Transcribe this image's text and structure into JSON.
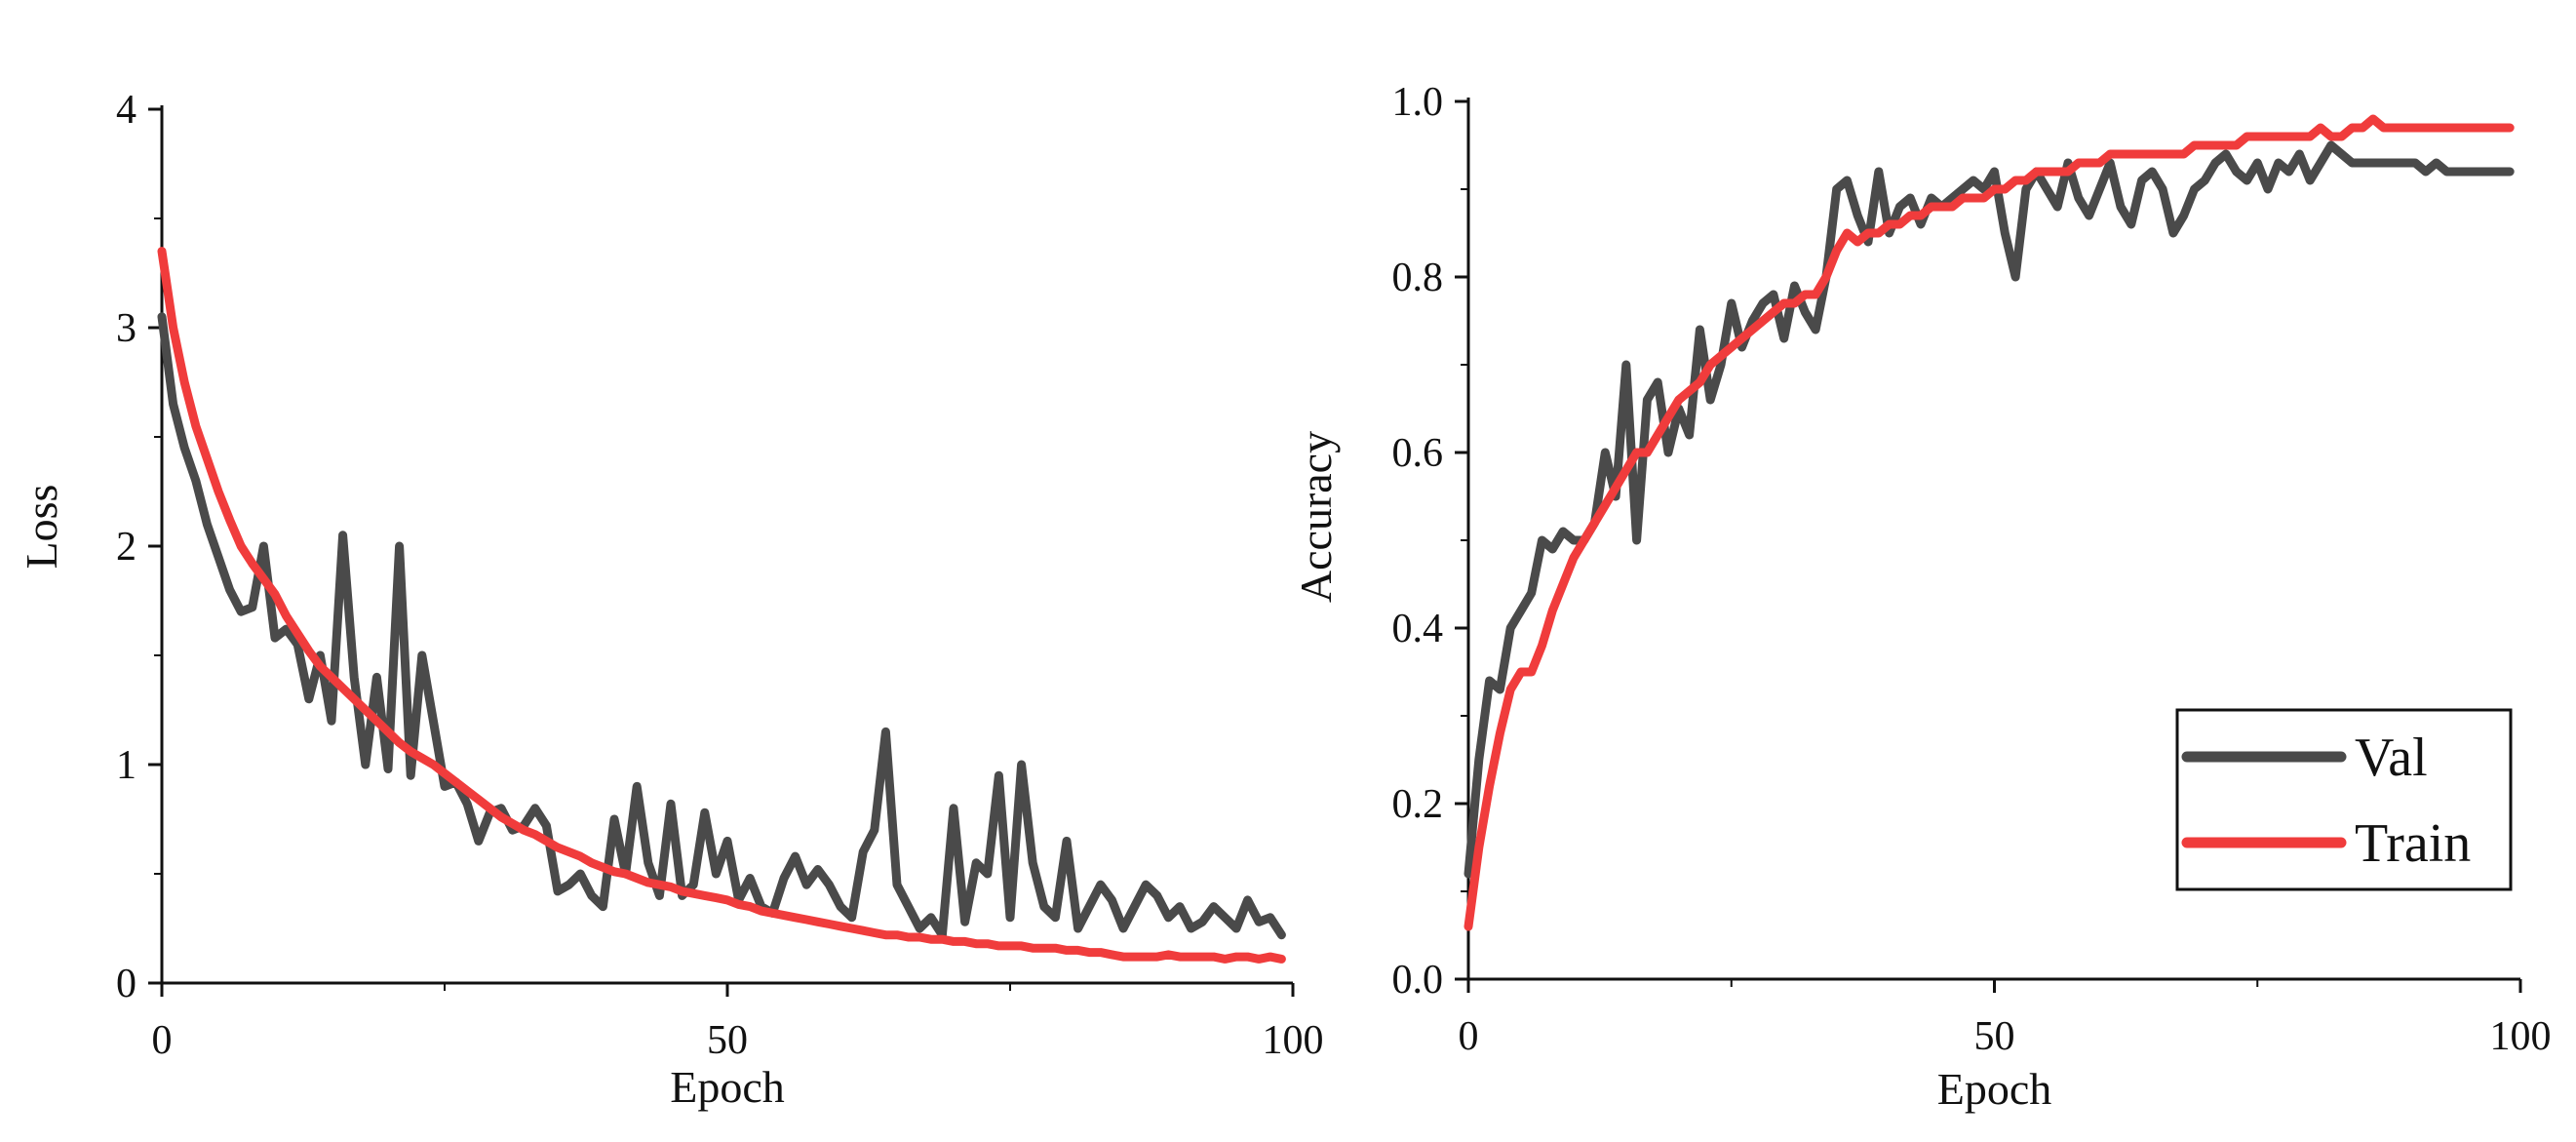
{
  "colors": {
    "val": "#4a4a4a",
    "train": "#f03c3c",
    "axis": "#111111"
  },
  "chart_data": [
    {
      "type": "line",
      "xlabel": "Epoch",
      "ylabel": "Loss",
      "xlim": [
        0,
        100
      ],
      "ylim": [
        0,
        4
      ],
      "xticks": [
        "0",
        "50",
        "100"
      ],
      "yticks": [
        "0",
        "1",
        "2",
        "3",
        "4"
      ],
      "grid": false,
      "series": [
        {
          "name": "Val",
          "x": [
            0,
            1,
            2,
            3,
            4,
            5,
            6,
            7,
            8,
            9,
            10,
            11,
            12,
            13,
            14,
            15,
            16,
            17,
            18,
            19,
            20,
            21,
            22,
            23,
            24,
            25,
            26,
            27,
            28,
            29,
            30,
            31,
            32,
            33,
            34,
            35,
            36,
            37,
            38,
            39,
            40,
            41,
            42,
            43,
            44,
            45,
            46,
            47,
            48,
            49,
            50,
            51,
            52,
            53,
            54,
            55,
            56,
            57,
            58,
            59,
            60,
            61,
            62,
            63,
            64,
            65,
            66,
            67,
            68,
            69,
            70,
            71,
            72,
            73,
            74,
            75,
            76,
            77,
            78,
            79,
            80,
            81,
            82,
            83,
            84,
            85,
            86,
            87,
            88,
            89,
            90,
            91,
            92,
            93,
            94,
            95,
            96,
            97,
            98,
            99
          ],
          "values": [
            3.05,
            2.65,
            2.45,
            2.3,
            2.1,
            1.95,
            1.8,
            1.7,
            1.72,
            2.0,
            1.58,
            1.62,
            1.55,
            1.3,
            1.5,
            1.2,
            2.05,
            1.4,
            1.0,
            1.4,
            0.98,
            2.0,
            0.95,
            1.5,
            1.2,
            0.9,
            0.92,
            0.82,
            0.65,
            0.78,
            0.8,
            0.7,
            0.72,
            0.8,
            0.72,
            0.42,
            0.45,
            0.5,
            0.4,
            0.35,
            0.75,
            0.5,
            0.9,
            0.55,
            0.4,
            0.82,
            0.4,
            0.45,
            0.78,
            0.5,
            0.65,
            0.38,
            0.48,
            0.35,
            0.32,
            0.48,
            0.58,
            0.45,
            0.52,
            0.45,
            0.35,
            0.3,
            0.6,
            0.7,
            1.15,
            0.45,
            0.35,
            0.25,
            0.3,
            0.22,
            0.8,
            0.28,
            0.55,
            0.5,
            0.95,
            0.3,
            1.0,
            0.55,
            0.35,
            0.3,
            0.65,
            0.25,
            0.35,
            0.45,
            0.38,
            0.25,
            0.35,
            0.45,
            0.4,
            0.3,
            0.35,
            0.25,
            0.28,
            0.35,
            0.3,
            0.25,
            0.38,
            0.28,
            0.3,
            0.22
          ]
        },
        {
          "name": "Train",
          "x": [
            0,
            1,
            2,
            3,
            4,
            5,
            6,
            7,
            8,
            9,
            10,
            11,
            12,
            13,
            14,
            15,
            16,
            17,
            18,
            19,
            20,
            21,
            22,
            23,
            24,
            25,
            26,
            27,
            28,
            29,
            30,
            31,
            32,
            33,
            34,
            35,
            36,
            37,
            38,
            39,
            40,
            41,
            42,
            43,
            44,
            45,
            46,
            47,
            48,
            49,
            50,
            51,
            52,
            53,
            54,
            55,
            56,
            57,
            58,
            59,
            60,
            61,
            62,
            63,
            64,
            65,
            66,
            67,
            68,
            69,
            70,
            71,
            72,
            73,
            74,
            75,
            76,
            77,
            78,
            79,
            80,
            81,
            82,
            83,
            84,
            85,
            86,
            87,
            88,
            89,
            90,
            91,
            92,
            93,
            94,
            95,
            96,
            97,
            98,
            99
          ],
          "values": [
            3.35,
            3.0,
            2.75,
            2.55,
            2.4,
            2.25,
            2.12,
            2.0,
            1.92,
            1.85,
            1.78,
            1.68,
            1.6,
            1.52,
            1.45,
            1.4,
            1.35,
            1.3,
            1.25,
            1.2,
            1.15,
            1.1,
            1.06,
            1.03,
            1.0,
            0.96,
            0.92,
            0.88,
            0.84,
            0.8,
            0.76,
            0.73,
            0.7,
            0.68,
            0.65,
            0.62,
            0.6,
            0.58,
            0.55,
            0.53,
            0.51,
            0.5,
            0.48,
            0.46,
            0.45,
            0.44,
            0.42,
            0.41,
            0.4,
            0.39,
            0.38,
            0.36,
            0.35,
            0.33,
            0.32,
            0.31,
            0.3,
            0.29,
            0.28,
            0.27,
            0.26,
            0.25,
            0.24,
            0.23,
            0.22,
            0.22,
            0.21,
            0.21,
            0.2,
            0.2,
            0.19,
            0.19,
            0.18,
            0.18,
            0.17,
            0.17,
            0.17,
            0.16,
            0.16,
            0.16,
            0.15,
            0.15,
            0.14,
            0.14,
            0.13,
            0.12,
            0.12,
            0.12,
            0.12,
            0.13,
            0.12,
            0.12,
            0.12,
            0.12,
            0.11,
            0.12,
            0.12,
            0.11,
            0.12,
            0.11
          ]
        }
      ]
    },
    {
      "type": "line",
      "xlabel": "Epoch",
      "ylabel": "Accuracy",
      "xlim": [
        0,
        100
      ],
      "ylim": [
        0,
        1
      ],
      "xticks": [
        "0",
        "50",
        "100"
      ],
      "yticks": [
        "0.0",
        "0.2",
        "0.4",
        "0.6",
        "0.8",
        "1.0"
      ],
      "grid": false,
      "legend_position": "bottom-right",
      "series": [
        {
          "name": "Val",
          "x": [
            0,
            1,
            2,
            3,
            4,
            5,
            6,
            7,
            8,
            9,
            10,
            11,
            12,
            13,
            14,
            15,
            16,
            17,
            18,
            19,
            20,
            21,
            22,
            23,
            24,
            25,
            26,
            27,
            28,
            29,
            30,
            31,
            32,
            33,
            34,
            35,
            36,
            37,
            38,
            39,
            40,
            41,
            42,
            43,
            44,
            45,
            46,
            47,
            48,
            49,
            50,
            51,
            52,
            53,
            54,
            55,
            56,
            57,
            58,
            59,
            60,
            61,
            62,
            63,
            64,
            65,
            66,
            67,
            68,
            69,
            70,
            71,
            72,
            73,
            74,
            75,
            76,
            77,
            78,
            79,
            80,
            81,
            82,
            83,
            84,
            85,
            86,
            87,
            88,
            89,
            90,
            91,
            92,
            93,
            94,
            95,
            96,
            97,
            98,
            99
          ],
          "values": [
            0.12,
            0.25,
            0.34,
            0.33,
            0.4,
            0.42,
            0.44,
            0.5,
            0.49,
            0.51,
            0.5,
            0.5,
            0.52,
            0.6,
            0.55,
            0.7,
            0.5,
            0.66,
            0.68,
            0.6,
            0.65,
            0.62,
            0.74,
            0.66,
            0.7,
            0.77,
            0.72,
            0.75,
            0.77,
            0.78,
            0.73,
            0.79,
            0.76,
            0.74,
            0.8,
            0.9,
            0.91,
            0.87,
            0.84,
            0.92,
            0.85,
            0.88,
            0.89,
            0.86,
            0.89,
            0.88,
            0.89,
            0.9,
            0.91,
            0.9,
            0.92,
            0.85,
            0.8,
            0.9,
            0.92,
            0.9,
            0.88,
            0.93,
            0.89,
            0.87,
            0.9,
            0.93,
            0.88,
            0.86,
            0.91,
            0.92,
            0.9,
            0.85,
            0.87,
            0.9,
            0.91,
            0.93,
            0.94,
            0.92,
            0.91,
            0.93,
            0.9,
            0.93,
            0.92,
            0.94,
            0.91,
            0.93,
            0.95,
            0.94,
            0.93,
            0.93,
            0.93,
            0.93,
            0.93,
            0.93,
            0.93,
            0.92,
            0.93,
            0.92,
            0.92,
            0.92,
            0.92,
            0.92,
            0.92,
            0.92
          ]
        },
        {
          "name": "Train",
          "x": [
            0,
            1,
            2,
            3,
            4,
            5,
            6,
            7,
            8,
            9,
            10,
            11,
            12,
            13,
            14,
            15,
            16,
            17,
            18,
            19,
            20,
            21,
            22,
            23,
            24,
            25,
            26,
            27,
            28,
            29,
            30,
            31,
            32,
            33,
            34,
            35,
            36,
            37,
            38,
            39,
            40,
            41,
            42,
            43,
            44,
            45,
            46,
            47,
            48,
            49,
            50,
            51,
            52,
            53,
            54,
            55,
            56,
            57,
            58,
            59,
            60,
            61,
            62,
            63,
            64,
            65,
            66,
            67,
            68,
            69,
            70,
            71,
            72,
            73,
            74,
            75,
            76,
            77,
            78,
            79,
            80,
            81,
            82,
            83,
            84,
            85,
            86,
            87,
            88,
            89,
            90,
            91,
            92,
            93,
            94,
            95,
            96,
            97,
            98,
            99
          ],
          "values": [
            0.06,
            0.15,
            0.22,
            0.28,
            0.33,
            0.35,
            0.35,
            0.38,
            0.42,
            0.45,
            0.48,
            0.5,
            0.52,
            0.54,
            0.56,
            0.58,
            0.6,
            0.6,
            0.62,
            0.64,
            0.66,
            0.67,
            0.68,
            0.7,
            0.71,
            0.72,
            0.73,
            0.74,
            0.75,
            0.76,
            0.77,
            0.77,
            0.78,
            0.78,
            0.8,
            0.83,
            0.85,
            0.84,
            0.85,
            0.85,
            0.86,
            0.86,
            0.87,
            0.87,
            0.88,
            0.88,
            0.88,
            0.89,
            0.89,
            0.89,
            0.9,
            0.9,
            0.91,
            0.91,
            0.92,
            0.92,
            0.92,
            0.92,
            0.93,
            0.93,
            0.93,
            0.94,
            0.94,
            0.94,
            0.94,
            0.94,
            0.94,
            0.94,
            0.94,
            0.95,
            0.95,
            0.95,
            0.95,
            0.95,
            0.96,
            0.96,
            0.96,
            0.96,
            0.96,
            0.96,
            0.96,
            0.97,
            0.96,
            0.96,
            0.97,
            0.97,
            0.98,
            0.97,
            0.97,
            0.97,
            0.97,
            0.97,
            0.97,
            0.97,
            0.97,
            0.97,
            0.97,
            0.97,
            0.97,
            0.97
          ]
        }
      ],
      "legend": [
        "Val",
        "Train"
      ]
    }
  ]
}
